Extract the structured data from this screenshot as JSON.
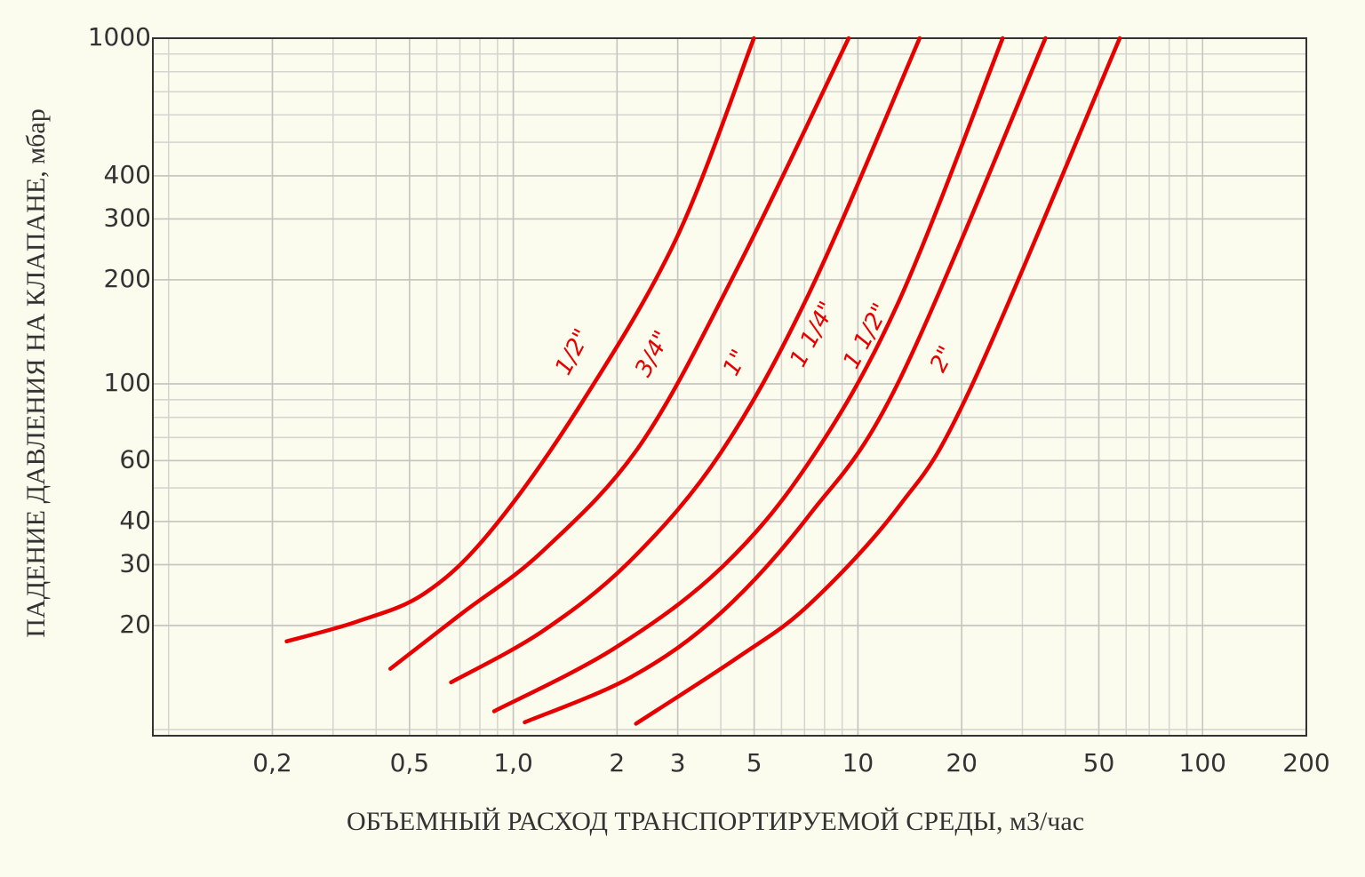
{
  "chart_data": {
    "type": "line",
    "xlabel": "ОБЪЕМНЫЙ РАСХОД ТРАНСПОРТИРУЕМОЙ СРЕДЫ, м3/час",
    "ylabel": "ПАДЕНИЕ ДАВЛЕНИЯ НА КЛАПАНЕ, мбар",
    "xscale": "log",
    "yscale": "log",
    "grid": true,
    "xlim": [
      0.09,
      200
    ],
    "ylim": [
      9.6,
      1000
    ],
    "xticks": [
      {
        "value": 0.2,
        "label": "0,2"
      },
      {
        "value": 0.5,
        "label": "0,5"
      },
      {
        "value": 1,
        "label": "1,0"
      },
      2,
      3,
      5,
      10,
      20,
      50,
      100,
      200
    ],
    "yticks": [
      20,
      30,
      40,
      60,
      100,
      200,
      300,
      400,
      1000
    ],
    "series": [
      {
        "name": "1/2\"",
        "color": "#e60000",
        "x": [
          0.22,
          0.35,
          0.55,
          0.85,
          1.54,
          2.96,
          4.99
        ],
        "y": [
          18,
          20.5,
          24.7,
          37,
          84.7,
          261,
          1000
        ]
      },
      {
        "name": "3/4\"",
        "color": "#e60000",
        "x": [
          0.44,
          0.71,
          1.22,
          2.34,
          4.49,
          9.4
        ],
        "y": [
          15,
          21.7,
          32.9,
          66.8,
          218,
          1000
        ]
      },
      {
        "name": "1\"",
        "color": "#e60000",
        "x": [
          0.66,
          1.22,
          2.2,
          3.99,
          7.22,
          15.1
        ],
        "y": [
          13.7,
          19.3,
          31,
          63,
          183,
          1000
        ]
      },
      {
        "name": "1 1/4\"",
        "color": "#e60000",
        "x": [
          0.88,
          1.95,
          3.99,
          7.22,
          13.1,
          26.3
        ],
        "y": [
          11.3,
          17.1,
          29.2,
          59.4,
          172,
          1000
        ]
      },
      {
        "name": "1 1/2\"",
        "color": "#e60000",
        "x": [
          1.08,
          2.2,
          3.99,
          7.22,
          13.1,
          35
        ],
        "y": [
          10.5,
          14.2,
          21.7,
          41.7,
          101,
          1000
        ]
      },
      {
        "name": "2\"",
        "color": "#e60000",
        "x": [
          2.27,
          4.49,
          7.22,
          13.1,
          21,
          57.5
        ],
        "y": [
          10.4,
          16.2,
          23,
          44,
          95,
          1000
        ]
      }
    ]
  }
}
